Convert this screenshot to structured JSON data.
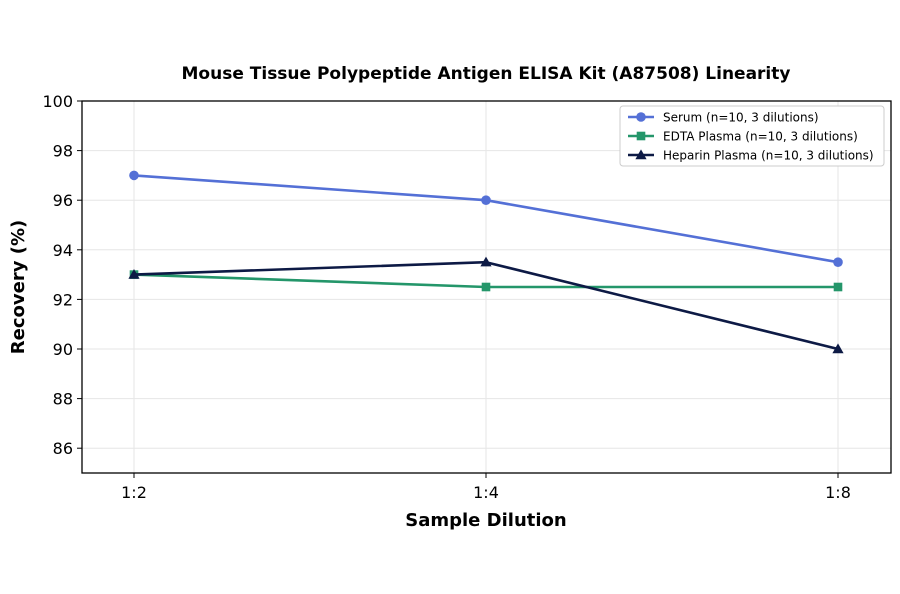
{
  "chart_data": {
    "type": "line",
    "title": "Mouse Tissue Polypeptide Antigen ELISA Kit (A87508) Linearity",
    "xlabel": "Sample Dilution",
    "ylabel": "Recovery (%)",
    "categories": [
      "1:2",
      "1:4",
      "1:8"
    ],
    "ylim": [
      85,
      100
    ],
    "yticks": [
      86,
      88,
      90,
      92,
      94,
      96,
      98,
      100
    ],
    "grid": true,
    "legend_position": "top-right",
    "series": [
      {
        "name": "Serum (n=10, 3 dilutions)",
        "values": [
          97.0,
          96.0,
          93.5
        ],
        "color": "#5470d6",
        "marker": "circle"
      },
      {
        "name": "EDTA Plasma (n=10, 3 dilutions)",
        "values": [
          93.0,
          92.5,
          92.5
        ],
        "color": "#24966a",
        "marker": "square"
      },
      {
        "name": "Heparin Plasma (n=10, 3 dilutions)",
        "values": [
          93.0,
          93.5,
          90.0
        ],
        "color": "#0d1a45",
        "marker": "triangle"
      }
    ]
  }
}
